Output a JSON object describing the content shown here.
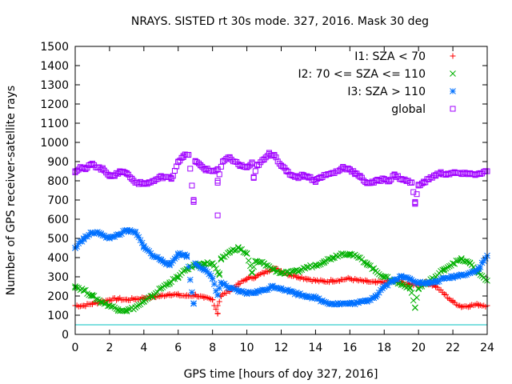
{
  "chart_data": {
    "type": "scatter",
    "title": "NRAYS. SISTED rt 30s mode. 327, 2016. Mask 30 deg",
    "xlabel": "GPS time [hours of doy 327, 2016]",
    "ylabel": "Number of GPS receiver-satellite rays",
    "xlim": [
      0,
      24
    ],
    "ylim": [
      0,
      1500
    ],
    "xticks": [
      0,
      2,
      4,
      6,
      8,
      10,
      12,
      14,
      16,
      18,
      20,
      22,
      24
    ],
    "yticks": [
      0,
      100,
      200,
      300,
      400,
      500,
      600,
      700,
      800,
      900,
      1000,
      1100,
      1200,
      1300,
      1400,
      1500
    ],
    "legend_position": "top-right",
    "reference_line": {
      "y": 50,
      "color": "#00c0c0"
    },
    "series": [
      {
        "name": "I1: SZA < 70",
        "color": "#ff0000",
        "marker": "+",
        "points": [
          [
            0,
            150
          ],
          [
            0.5,
            150
          ],
          [
            1,
            160
          ],
          [
            1.5,
            170
          ],
          [
            2,
            180
          ],
          [
            2.5,
            185
          ],
          [
            3,
            180
          ],
          [
            3.5,
            185
          ],
          [
            4,
            190
          ],
          [
            4.5,
            195
          ],
          [
            5,
            200
          ],
          [
            5.5,
            210
          ],
          [
            6,
            205
          ],
          [
            6.5,
            200
          ],
          [
            7,
            205
          ],
          [
            7.5,
            190
          ],
          [
            8,
            180
          ],
          [
            8.5,
            200
          ],
          [
            9,
            230
          ],
          [
            9.5,
            260
          ],
          [
            10,
            290
          ],
          [
            10.5,
            300
          ],
          [
            11,
            320
          ],
          [
            11.5,
            345
          ],
          [
            12,
            330
          ],
          [
            12.5,
            310
          ],
          [
            13,
            300
          ],
          [
            13.5,
            290
          ],
          [
            14,
            280
          ],
          [
            14.5,
            275
          ],
          [
            15,
            280
          ],
          [
            15.5,
            285
          ],
          [
            16,
            290
          ],
          [
            16.5,
            280
          ],
          [
            17,
            275
          ],
          [
            17.5,
            270
          ],
          [
            18,
            270
          ],
          [
            18.5,
            280
          ],
          [
            19,
            270
          ],
          [
            19.5,
            260
          ],
          [
            20,
            260
          ],
          [
            20.5,
            270
          ],
          [
            21,
            250
          ],
          [
            21.5,
            210
          ],
          [
            22,
            170
          ],
          [
            22.5,
            145
          ],
          [
            23,
            150
          ],
          [
            23.5,
            155
          ],
          [
            24,
            150
          ],
          [
            8.3,
            110
          ],
          [
            8.3,
            150
          ]
        ]
      },
      {
        "name": "I2: 70 <= SZA <= 110",
        "color": "#00b000",
        "marker": "x",
        "points": [
          [
            0,
            250
          ],
          [
            0.5,
            230
          ],
          [
            1,
            200
          ],
          [
            1.5,
            170
          ],
          [
            2,
            150
          ],
          [
            2.5,
            130
          ],
          [
            3,
            125
          ],
          [
            3.5,
            140
          ],
          [
            4,
            170
          ],
          [
            4.5,
            200
          ],
          [
            5,
            240
          ],
          [
            5.5,
            270
          ],
          [
            6,
            300
          ],
          [
            6.5,
            340
          ],
          [
            7,
            360
          ],
          [
            7.5,
            370
          ],
          [
            8,
            370
          ],
          [
            8.5,
            390
          ],
          [
            9,
            430
          ],
          [
            9.5,
            450
          ],
          [
            10,
            420
          ],
          [
            10.5,
            380
          ],
          [
            11,
            370
          ],
          [
            11.5,
            340
          ],
          [
            12,
            320
          ],
          [
            12.5,
            320
          ],
          [
            13,
            330
          ],
          [
            13.5,
            350
          ],
          [
            14,
            360
          ],
          [
            14.5,
            380
          ],
          [
            15,
            400
          ],
          [
            15.5,
            420
          ],
          [
            16,
            420
          ],
          [
            16.5,
            400
          ],
          [
            17,
            370
          ],
          [
            17.5,
            330
          ],
          [
            18,
            300
          ],
          [
            18.5,
            280
          ],
          [
            19,
            260
          ],
          [
            19.5,
            245
          ],
          [
            20,
            240
          ],
          [
            20.5,
            270
          ],
          [
            21,
            300
          ],
          [
            21.5,
            340
          ],
          [
            22,
            370
          ],
          [
            22.5,
            390
          ],
          [
            23,
            370
          ],
          [
            23.5,
            320
          ],
          [
            24,
            280
          ],
          [
            8.4,
            310
          ],
          [
            10.3,
            320
          ],
          [
            19.8,
            140
          ]
        ]
      },
      {
        "name": "I3: SZA > 110",
        "color": "#0070ff",
        "marker": "*",
        "points": [
          [
            0,
            450
          ],
          [
            0.5,
            500
          ],
          [
            1,
            530
          ],
          [
            1.5,
            525
          ],
          [
            2,
            500
          ],
          [
            2.5,
            520
          ],
          [
            3,
            540
          ],
          [
            3.5,
            530
          ],
          [
            4,
            460
          ],
          [
            4.5,
            410
          ],
          [
            5,
            390
          ],
          [
            5.5,
            360
          ],
          [
            6,
            420
          ],
          [
            6.5,
            410
          ],
          [
            7,
            370
          ],
          [
            7.5,
            340
          ],
          [
            8,
            290
          ],
          [
            8.5,
            270
          ],
          [
            9,
            240
          ],
          [
            9.5,
            225
          ],
          [
            10,
            215
          ],
          [
            10.5,
            220
          ],
          [
            11,
            230
          ],
          [
            11.5,
            250
          ],
          [
            12,
            240
          ],
          [
            12.5,
            225
          ],
          [
            13,
            210
          ],
          [
            13.5,
            200
          ],
          [
            14,
            190
          ],
          [
            14.5,
            170
          ],
          [
            15,
            160
          ],
          [
            15.5,
            160
          ],
          [
            16,
            160
          ],
          [
            16.5,
            165
          ],
          [
            17,
            175
          ],
          [
            17.5,
            200
          ],
          [
            18,
            250
          ],
          [
            18.5,
            280
          ],
          [
            19,
            300
          ],
          [
            19.5,
            290
          ],
          [
            20,
            270
          ],
          [
            20.5,
            265
          ],
          [
            21,
            275
          ],
          [
            21.5,
            290
          ],
          [
            22,
            300
          ],
          [
            22.5,
            310
          ],
          [
            23,
            320
          ],
          [
            23.5,
            340
          ],
          [
            24,
            410
          ],
          [
            6.9,
            160
          ],
          [
            8.3,
            205
          ]
        ]
      },
      {
        "name": "global",
        "color": "#a000ff",
        "marker": "square",
        "points": [
          [
            0,
            850
          ],
          [
            0.3,
            870
          ],
          [
            0.6,
            860
          ],
          [
            1,
            890
          ],
          [
            1.3,
            870
          ],
          [
            1.6,
            860
          ],
          [
            2,
            830
          ],
          [
            2.3,
            825
          ],
          [
            2.6,
            850
          ],
          [
            3,
            840
          ],
          [
            3.3,
            810
          ],
          [
            3.6,
            790
          ],
          [
            4,
            785
          ],
          [
            4.3,
            790
          ],
          [
            4.6,
            800
          ],
          [
            5,
            820
          ],
          [
            5.3,
            820
          ],
          [
            5.6,
            810
          ],
          [
            6,
            900
          ],
          [
            6.3,
            930
          ],
          [
            6.6,
            935
          ],
          [
            7,
            900
          ],
          [
            7.3,
            880
          ],
          [
            7.6,
            860
          ],
          [
            8,
            850
          ],
          [
            8.3,
            860
          ],
          [
            8.6,
            900
          ],
          [
            9,
            920
          ],
          [
            9.3,
            900
          ],
          [
            9.6,
            880
          ],
          [
            10,
            870
          ],
          [
            10.3,
            890
          ],
          [
            10.6,
            880
          ],
          [
            11,
            910
          ],
          [
            11.3,
            940
          ],
          [
            11.6,
            935
          ],
          [
            12,
            880
          ],
          [
            12.3,
            850
          ],
          [
            12.6,
            830
          ],
          [
            13,
            820
          ],
          [
            13.3,
            830
          ],
          [
            13.6,
            820
          ],
          [
            14,
            800
          ],
          [
            14.3,
            820
          ],
          [
            14.6,
            830
          ],
          [
            15,
            840
          ],
          [
            15.3,
            850
          ],
          [
            15.6,
            870
          ],
          [
            16,
            860
          ],
          [
            16.3,
            840
          ],
          [
            16.6,
            820
          ],
          [
            17,
            790
          ],
          [
            17.3,
            790
          ],
          [
            17.6,
            800
          ],
          [
            18,
            810
          ],
          [
            18.3,
            800
          ],
          [
            18.6,
            830
          ],
          [
            19,
            810
          ],
          [
            19.3,
            800
          ],
          [
            19.6,
            790
          ],
          [
            20,
            780
          ],
          [
            20.3,
            790
          ],
          [
            20.6,
            810
          ],
          [
            21,
            830
          ],
          [
            21.3,
            840
          ],
          [
            21.6,
            835
          ],
          [
            22,
            840
          ],
          [
            22.3,
            840
          ],
          [
            22.6,
            835
          ],
          [
            23,
            840
          ],
          [
            23.3,
            830
          ],
          [
            23.6,
            840
          ],
          [
            24,
            850
          ],
          [
            6.9,
            700
          ],
          [
            6.9,
            690
          ],
          [
            8.3,
            620
          ],
          [
            8.3,
            790
          ],
          [
            8.3,
            800
          ],
          [
            10.4,
            815
          ],
          [
            19.8,
            690
          ],
          [
            19.8,
            680
          ]
        ]
      }
    ]
  }
}
